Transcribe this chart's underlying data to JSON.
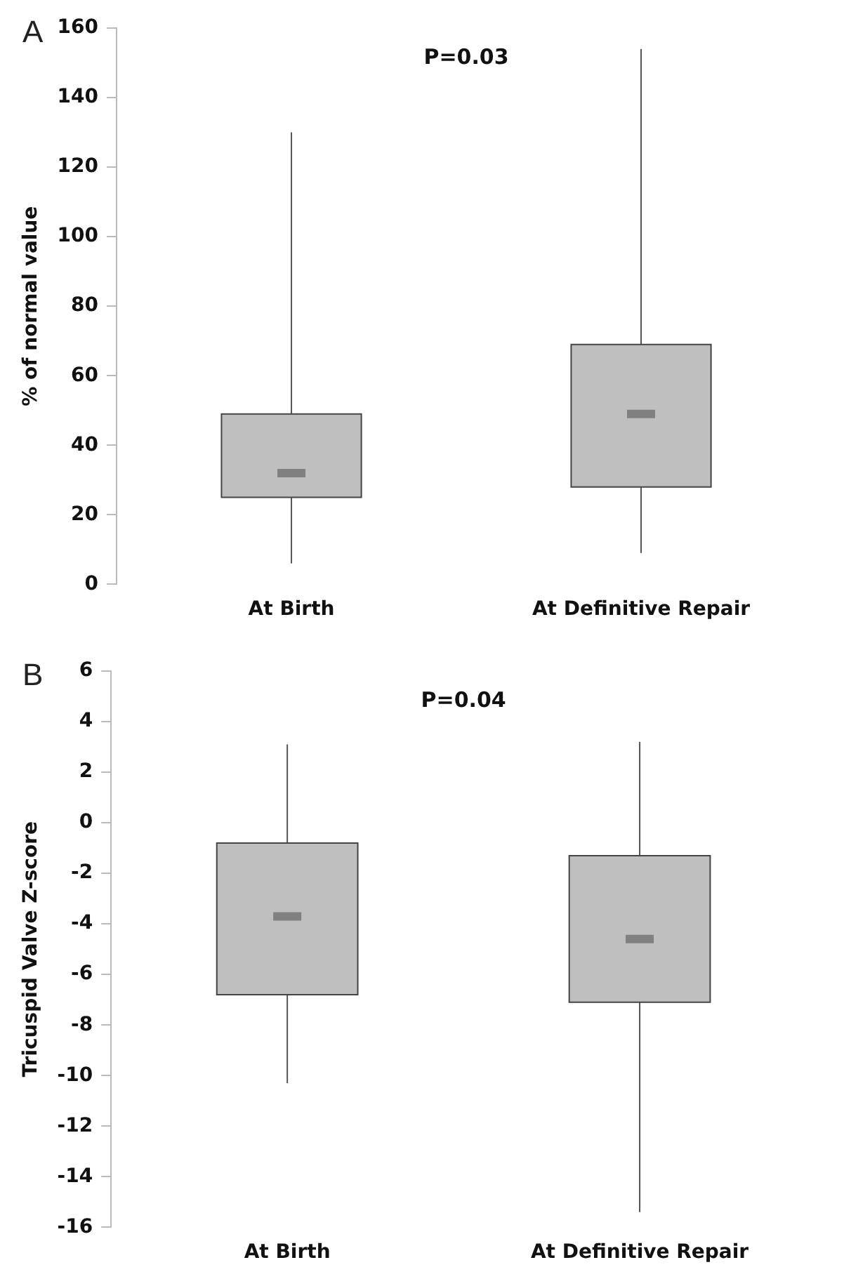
{
  "chart_data": [
    {
      "type": "box",
      "title": "A",
      "ylabel": "% of normal value",
      "categories": [
        "At Birth",
        "At Definitive Repair"
      ],
      "color": "#bfbfbf",
      "ylim": [
        0,
        160
      ],
      "yticks": [
        0,
        20,
        40,
        60,
        80,
        100,
        120,
        140,
        160
      ],
      "grid": false,
      "legend": false,
      "annotations": [
        "P=0.03"
      ],
      "boxes": [
        {
          "low": 6,
          "q1": 25,
          "median": 32,
          "q3": 49,
          "high": 130
        },
        {
          "low": 9,
          "q1": 28,
          "median": 49,
          "q3": 69,
          "high": 154
        }
      ]
    },
    {
      "type": "box",
      "title": "B",
      "ylabel": "Tricuspid Valve Z-score",
      "categories": [
        "At Birth",
        "At Definitive Repair"
      ],
      "color": "#bfbfbf",
      "ylim": [
        -16,
        6
      ],
      "yticks": [
        -16,
        -14,
        -12,
        -10,
        -8,
        -6,
        -4,
        -2,
        0,
        2,
        4,
        6
      ],
      "grid": false,
      "legend": false,
      "annotations": [
        "P=0.04"
      ],
      "boxes": [
        {
          "low": -10.3,
          "q1": -6.8,
          "median": -3.7,
          "q3": -0.8,
          "high": 3.1
        },
        {
          "low": -15.4,
          "q1": -7.1,
          "median": -4.6,
          "q3": -1.3,
          "high": 3.2
        }
      ]
    }
  ]
}
